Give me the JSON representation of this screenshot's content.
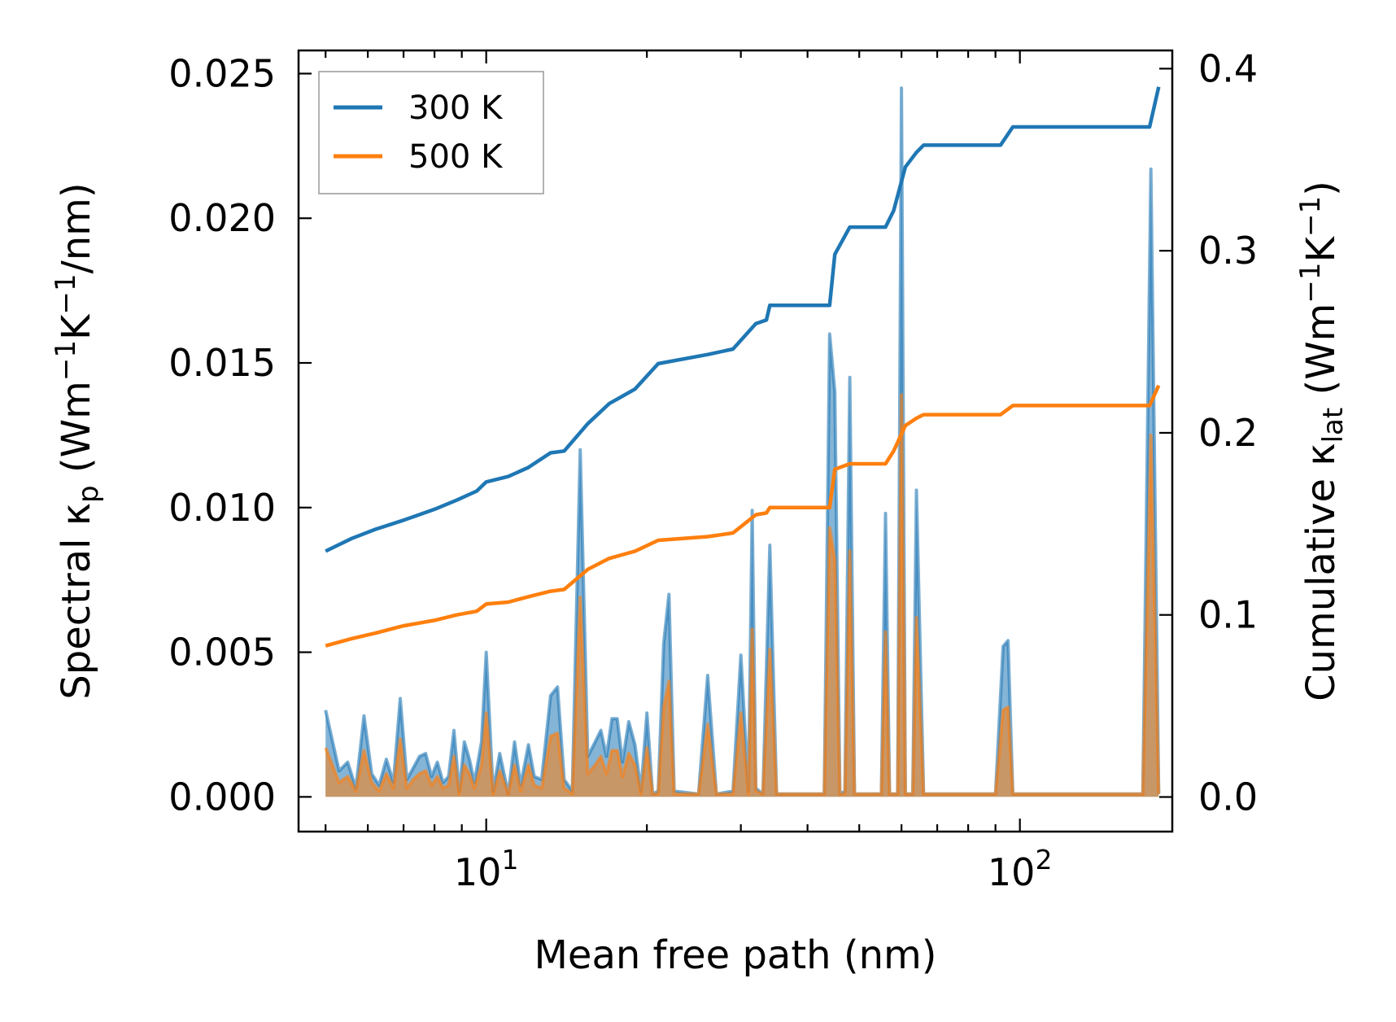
{
  "chart_data": {
    "type": "line",
    "x_scale": "log",
    "xlabel": "Mean free path (nm)",
    "ylabel_left": {
      "prefix": "Spectral κ",
      "sub": "p",
      "suffix_open": " (Wm",
      "sup1": "−1",
      "mid": "K",
      "sup2": "−1",
      "close": "/nm)"
    },
    "ylabel_right": {
      "prefix": "Cumulative κ",
      "sub": "lat",
      "suffix_open": " (Wm",
      "sup1": "−1",
      "mid": "K",
      "sup2": "−1",
      "close": ")"
    },
    "xlim": [
      4.45,
      193
    ],
    "ylim_left": [
      -0.0012,
      0.0258
    ],
    "ylim_right": [
      -0.019,
      0.41
    ],
    "x_ticks": [
      {
        "value": 10,
        "base": "10",
        "exp": "1"
      },
      {
        "value": 100,
        "base": "10",
        "exp": "2"
      }
    ],
    "y_left_ticks": [
      {
        "value": 0.0,
        "label": "0.000"
      },
      {
        "value": 0.005,
        "label": "0.005"
      },
      {
        "value": 0.01,
        "label": "0.010"
      },
      {
        "value": 0.015,
        "label": "0.015"
      },
      {
        "value": 0.02,
        "label": "0.020"
      },
      {
        "value": 0.025,
        "label": "0.025"
      }
    ],
    "y_right_ticks": [
      {
        "value": 0.0,
        "label": "0.0"
      },
      {
        "value": 0.1,
        "label": "0.1"
      },
      {
        "value": 0.2,
        "label": "0.2"
      },
      {
        "value": 0.3,
        "label": "0.3"
      },
      {
        "value": 0.4,
        "label": "0.4"
      }
    ],
    "legend": {
      "position": "top-left",
      "entries": [
        "300 K",
        "500 K"
      ]
    },
    "series": [
      {
        "name": "300 K",
        "color": "#1f77b4",
        "cumulative": {
          "x": [
            5,
            5.6,
            6.2,
            7,
            8,
            8.8,
            9.6,
            10,
            11,
            12,
            13.2,
            14,
            15.5,
            17,
            19,
            21,
            26,
            29,
            32,
            33.5,
            34,
            44,
            45,
            48,
            56,
            58,
            61,
            64,
            66,
            92,
            97,
            175,
            182
          ],
          "y": [
            0.135,
            0.142,
            0.147,
            0.152,
            0.158,
            0.163,
            0.168,
            0.173,
            0.176,
            0.181,
            0.189,
            0.19,
            0.205,
            0.216,
            0.224,
            0.238,
            0.243,
            0.246,
            0.26,
            0.262,
            0.27,
            0.27,
            0.298,
            0.313,
            0.313,
            0.322,
            0.346,
            0.354,
            0.358,
            0.358,
            0.368,
            0.368,
            0.39
          ]
        },
        "spectral": {
          "x": [
            5,
            5.3,
            5.5,
            5.7,
            5.9,
            6.1,
            6.3,
            6.5,
            6.7,
            6.9,
            7.1,
            7.3,
            7.5,
            7.7,
            7.9,
            8.1,
            8.3,
            8.5,
            8.7,
            8.9,
            9.1,
            9.3,
            9.5,
            9.8,
            10,
            10.3,
            10.6,
            11,
            11.3,
            11.6,
            12,
            12.3,
            12.7,
            13.2,
            13.6,
            14,
            14.5,
            15,
            15.5,
            16,
            16.4,
            16.8,
            17.2,
            17.6,
            18,
            18.5,
            19,
            19.5,
            20,
            20.5,
            21,
            21.5,
            22,
            22.5,
            25,
            26,
            27,
            29,
            30,
            31,
            31.5,
            32,
            33,
            34,
            35,
            43,
            44,
            45,
            46,
            47,
            48,
            49,
            55,
            56,
            57,
            59,
            60,
            61,
            63,
            64,
            66,
            90,
            93,
            95,
            97,
            170,
            176,
            182
          ],
          "y": [
            0.003,
            0.0009,
            0.0012,
            0.0003,
            0.0028,
            0.0008,
            0.0004,
            0.0013,
            0.0005,
            0.0034,
            0.0006,
            0.001,
            0.0014,
            0.0015,
            0.0007,
            0.0012,
            0.0005,
            0.0007,
            0.0023,
            0.0002,
            0.0019,
            0.0013,
            0.0005,
            0.0019,
            0.005,
            0.0002,
            0.0015,
            0.0001,
            0.0019,
            0.0004,
            0.0018,
            0.0007,
            0.0006,
            0.0035,
            0.0038,
            0.0006,
            0.0002,
            0.012,
            0.0014,
            0.0019,
            0.0023,
            0.0014,
            0.0027,
            0.0027,
            0.0012,
            0.0026,
            0.0018,
            0.0002,
            0.0029,
            0.0001,
            0.0002,
            0.0053,
            0.007,
            0.0002,
            0.0001,
            0.0042,
            0.0001,
            0.0002,
            0.0049,
            0.0002,
            0.0099,
            0.0003,
            0.0001,
            0.0087,
            0.0001,
            0.0001,
            0.016,
            0.014,
            0.0001,
            0.0002,
            0.0145,
            0.0001,
            0.0001,
            0.0098,
            0.0001,
            0.0001,
            0.0245,
            0.0001,
            0.0001,
            0.0106,
            0.0001,
            0.0001,
            0.0052,
            0.0054,
            0.0001,
            0.0001,
            0.0217,
            0.0001
          ]
        }
      },
      {
        "name": "500 K",
        "color": "#ff7f0e",
        "cumulative": {
          "x": [
            5,
            5.6,
            6.2,
            7,
            8,
            8.8,
            9.6,
            10,
            11,
            12,
            13.2,
            14,
            15.5,
            17,
            19,
            21,
            26,
            29,
            32,
            33.5,
            34,
            44,
            45,
            48,
            56,
            58,
            61,
            64,
            66,
            92,
            97,
            175,
            182
          ],
          "y": [
            0.083,
            0.087,
            0.09,
            0.094,
            0.097,
            0.1,
            0.102,
            0.106,
            0.107,
            0.11,
            0.113,
            0.114,
            0.125,
            0.131,
            0.135,
            0.141,
            0.143,
            0.145,
            0.155,
            0.156,
            0.159,
            0.159,
            0.18,
            0.183,
            0.183,
            0.19,
            0.204,
            0.208,
            0.21,
            0.21,
            0.215,
            0.215,
            0.226
          ]
        },
        "spectral": {
          "x": [
            5,
            5.3,
            5.5,
            5.7,
            5.9,
            6.1,
            6.3,
            6.5,
            6.7,
            6.9,
            7.1,
            7.3,
            7.5,
            7.7,
            7.9,
            8.1,
            8.3,
            8.5,
            8.7,
            8.9,
            9.1,
            9.3,
            9.5,
            9.8,
            10,
            10.3,
            10.6,
            11,
            11.3,
            11.6,
            12,
            12.3,
            12.7,
            13.2,
            13.6,
            14,
            14.5,
            15,
            15.5,
            16,
            16.4,
            16.8,
            17.2,
            17.6,
            18,
            18.5,
            19,
            19.5,
            20,
            20.5,
            21,
            21.5,
            22,
            22.5,
            25,
            26,
            27,
            29,
            30,
            31,
            31.5,
            32,
            33,
            34,
            35,
            43,
            44,
            45,
            46,
            47,
            48,
            49,
            55,
            56,
            57,
            59,
            60,
            61,
            63,
            64,
            66,
            90,
            93,
            95,
            97,
            170,
            176,
            182
          ],
          "y": [
            0.0017,
            0.0005,
            0.0007,
            0.0002,
            0.0016,
            0.0005,
            0.0002,
            0.0008,
            0.0003,
            0.002,
            0.0003,
            0.0006,
            0.0008,
            0.0009,
            0.0004,
            0.0007,
            0.0003,
            0.0004,
            0.0014,
            0.0001,
            0.0011,
            0.0008,
            0.0003,
            0.0011,
            0.0029,
            0.0001,
            0.0009,
            0.0001,
            0.0011,
            0.0002,
            0.0011,
            0.0004,
            0.0003,
            0.0021,
            0.0022,
            0.0003,
            0.0001,
            0.0069,
            0.0008,
            0.0011,
            0.0014,
            0.0008,
            0.0016,
            0.0016,
            0.0007,
            0.0015,
            0.0011,
            0.0001,
            0.0017,
            0.0001,
            0.0001,
            0.0031,
            0.004,
            0.0001,
            0.0001,
            0.0025,
            0.0001,
            0.0001,
            0.0029,
            0.0001,
            0.0058,
            0.0002,
            0.0001,
            0.0051,
            0.0001,
            0.0001,
            0.0093,
            0.0082,
            0.0001,
            0.0001,
            0.0085,
            0.0001,
            0.0001,
            0.0057,
            0.0001,
            0.0001,
            0.0139,
            0.0001,
            0.0001,
            0.0062,
            0.0001,
            0.0001,
            0.003,
            0.0031,
            0.0001,
            0.0001,
            0.0125,
            0.0001
          ]
        }
      }
    ]
  }
}
